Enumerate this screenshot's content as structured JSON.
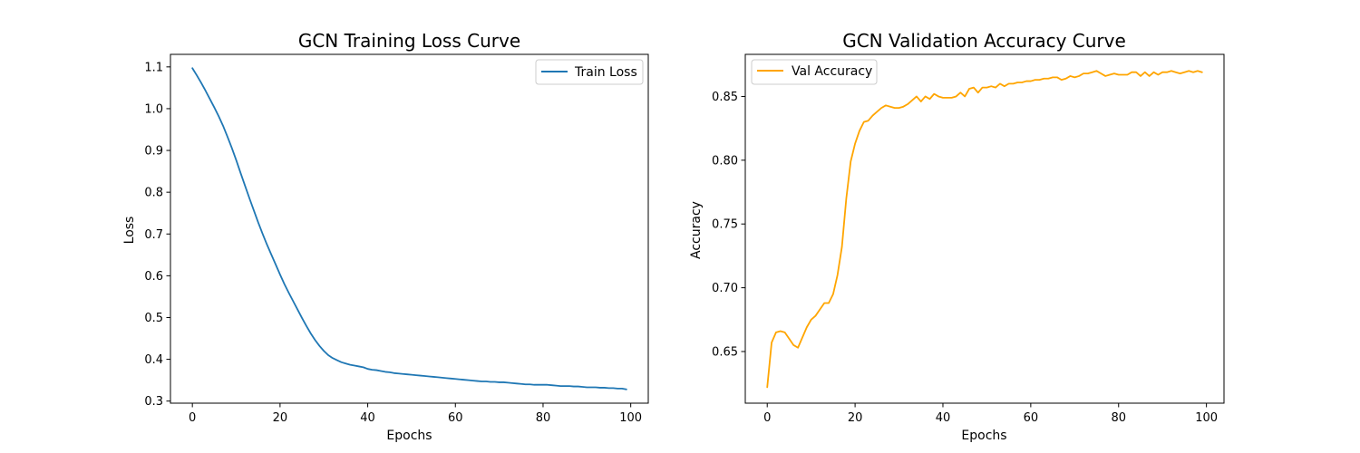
{
  "chart_data": [
    {
      "type": "line",
      "title": "GCN Training Loss Curve",
      "xlabel": "Epochs",
      "ylabel": "Loss",
      "xlim": [
        -5,
        104
      ],
      "ylim": [
        0.295,
        1.13
      ],
      "xticks": [
        0,
        20,
        40,
        60,
        80,
        100
      ],
      "yticks": [
        0.3,
        0.4,
        0.5,
        0.6,
        0.7,
        0.8,
        0.9,
        1.0,
        1.1
      ],
      "xtick_labels": [
        "0",
        "20",
        "40",
        "60",
        "80",
        "100"
      ],
      "ytick_labels": [
        "0.3",
        "0.4",
        "0.5",
        "0.6",
        "0.7",
        "0.8",
        "0.9",
        "1.0",
        "1.1"
      ],
      "grid": false,
      "legend_position": "top-right",
      "series": [
        {
          "name": "Train Loss",
          "color": "#1f77b4",
          "values": [
            1.097,
            1.08,
            1.062,
            1.043,
            1.023,
            1.003,
            0.982,
            0.959,
            0.933,
            0.906,
            0.877,
            0.846,
            0.816,
            0.786,
            0.757,
            0.728,
            0.701,
            0.675,
            0.651,
            0.627,
            0.603,
            0.58,
            0.559,
            0.539,
            0.519,
            0.499,
            0.48,
            0.462,
            0.446,
            0.432,
            0.42,
            0.41,
            0.403,
            0.398,
            0.393,
            0.39,
            0.387,
            0.385,
            0.383,
            0.381,
            0.377,
            0.375,
            0.374,
            0.372,
            0.37,
            0.369,
            0.367,
            0.366,
            0.365,
            0.364,
            0.363,
            0.362,
            0.361,
            0.36,
            0.359,
            0.358,
            0.357,
            0.356,
            0.355,
            0.354,
            0.353,
            0.352,
            0.351,
            0.35,
            0.349,
            0.348,
            0.347,
            0.347,
            0.346,
            0.346,
            0.345,
            0.345,
            0.344,
            0.343,
            0.342,
            0.341,
            0.34,
            0.34,
            0.339,
            0.339,
            0.339,
            0.339,
            0.338,
            0.337,
            0.336,
            0.336,
            0.336,
            0.335,
            0.335,
            0.334,
            0.333,
            0.333,
            0.333,
            0.332,
            0.332,
            0.331,
            0.331,
            0.33,
            0.33,
            0.328
          ]
        }
      ]
    },
    {
      "type": "line",
      "title": "GCN Validation Accuracy Curve",
      "xlabel": "Epochs",
      "ylabel": "Accuracy",
      "xlim": [
        -5,
        104
      ],
      "ylim": [
        0.6095,
        0.883
      ],
      "xticks": [
        0,
        20,
        40,
        60,
        80,
        100
      ],
      "yticks": [
        0.65,
        0.7,
        0.75,
        0.8,
        0.85
      ],
      "xtick_labels": [
        "0",
        "20",
        "40",
        "60",
        "80",
        "100"
      ],
      "ytick_labels": [
        "0.65",
        "0.70",
        "0.75",
        "0.80",
        "0.85"
      ],
      "grid": false,
      "legend_position": "top-left",
      "series": [
        {
          "name": "Val Accuracy",
          "color": "#ffa500",
          "values": [
            0.622,
            0.657,
            0.665,
            0.666,
            0.665,
            0.66,
            0.655,
            0.653,
            0.661,
            0.669,
            0.675,
            0.678,
            0.683,
            0.688,
            0.688,
            0.695,
            0.71,
            0.732,
            0.77,
            0.799,
            0.813,
            0.823,
            0.83,
            0.831,
            0.835,
            0.838,
            0.841,
            0.843,
            0.842,
            0.841,
            0.841,
            0.842,
            0.844,
            0.847,
            0.85,
            0.846,
            0.85,
            0.848,
            0.852,
            0.85,
            0.849,
            0.849,
            0.849,
            0.85,
            0.853,
            0.85,
            0.856,
            0.857,
            0.853,
            0.857,
            0.857,
            0.858,
            0.857,
            0.86,
            0.858,
            0.86,
            0.86,
            0.861,
            0.861,
            0.862,
            0.862,
            0.863,
            0.863,
            0.864,
            0.864,
            0.865,
            0.865,
            0.863,
            0.864,
            0.866,
            0.865,
            0.866,
            0.868,
            0.868,
            0.869,
            0.87,
            0.868,
            0.866,
            0.867,
            0.868,
            0.867,
            0.867,
            0.867,
            0.869,
            0.869,
            0.866,
            0.869,
            0.866,
            0.869,
            0.867,
            0.869,
            0.869,
            0.87,
            0.869,
            0.868,
            0.869,
            0.87,
            0.869,
            0.87,
            0.869
          ]
        }
      ]
    }
  ]
}
